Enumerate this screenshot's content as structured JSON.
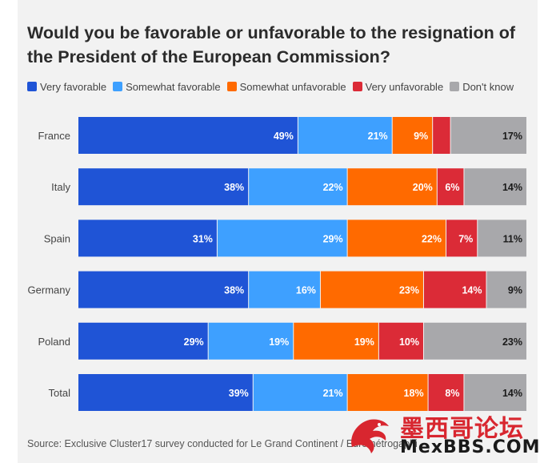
{
  "chart_data": {
    "type": "bar",
    "orientation": "horizontal-stacked-100",
    "title": "Would you be favorable or unfavorable to the resignation of the President of the European Commission?",
    "categories": [
      "France",
      "Italy",
      "Spain",
      "Germany",
      "Poland",
      "Total"
    ],
    "series": [
      {
        "name": "Very favorable",
        "color": "#1f54d6",
        "values": [
          49,
          38,
          31,
          38,
          29,
          39
        ]
      },
      {
        "name": "Somewhat favorable",
        "color": "#3ea0ff",
        "values": [
          21,
          22,
          29,
          16,
          19,
          21
        ]
      },
      {
        "name": "Somewhat unfavorable",
        "color": "#ff6a00",
        "values": [
          9,
          20,
          22,
          23,
          19,
          18
        ]
      },
      {
        "name": "Very unfavorable",
        "color": "#db2b37",
        "values": [
          4,
          6,
          7,
          14,
          10,
          8
        ]
      },
      {
        "name": "Don't know",
        "color": "#a8a8ab",
        "values": [
          17,
          14,
          11,
          9,
          23,
          14
        ]
      }
    ],
    "data_labels": [
      [
        "49%",
        "21%",
        "9%",
        "",
        "17%"
      ],
      [
        "38%",
        "22%",
        "20%",
        "6%",
        "14%"
      ],
      [
        "31%",
        "29%",
        "22%",
        "7%",
        "11%"
      ],
      [
        "38%",
        "16%",
        "23%",
        "14%",
        "9%"
      ],
      [
        "29%",
        "19%",
        "19%",
        "10%",
        "23%"
      ],
      [
        "39%",
        "21%",
        "18%",
        "8%",
        "14%"
      ]
    ],
    "xlim": [
      0,
      100
    ],
    "legend_position": "top-left",
    "grid": false
  },
  "source": "Source: Exclusive Cluster17 survey conducted for Le Grand Continent / Eurométrogaphi",
  "watermark": {
    "text_cn": "墨西哥论坛",
    "text_en": "MexBBS.COM"
  }
}
